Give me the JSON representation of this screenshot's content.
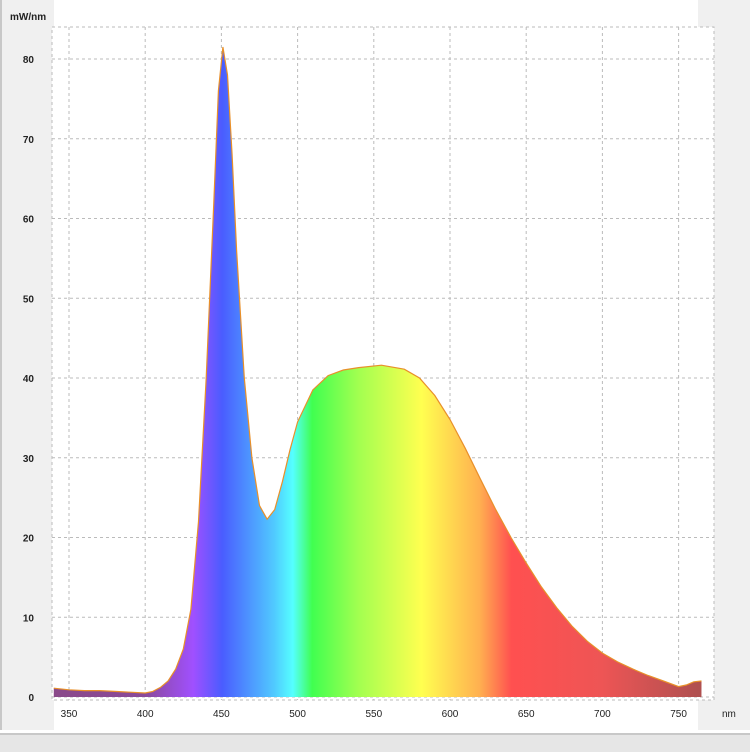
{
  "chart_data": {
    "type": "area",
    "title": "",
    "xlabel": "nm",
    "ylabel": "mW/nm",
    "xlim": [
      340,
      765
    ],
    "ylim": [
      0,
      82
    ],
    "xticks": [
      350,
      400,
      450,
      500,
      550,
      600,
      650,
      700,
      750
    ],
    "yticks": [
      0,
      10,
      20,
      30,
      40,
      50,
      60,
      70,
      80
    ],
    "grid": true,
    "fill": "visible-spectrum gradient",
    "outline_color": "#e8902a",
    "x": [
      340,
      350,
      360,
      370,
      380,
      390,
      400,
      405,
      410,
      415,
      420,
      425,
      430,
      435,
      440,
      445,
      448,
      451,
      454,
      457,
      460,
      465,
      470,
      475,
      480,
      485,
      490,
      495,
      500,
      510,
      520,
      530,
      540,
      555,
      570,
      580,
      590,
      600,
      610,
      620,
      630,
      640,
      650,
      660,
      670,
      680,
      690,
      700,
      710,
      720,
      730,
      740,
      750,
      755,
      760,
      765
    ],
    "y": [
      1.1,
      0.9,
      0.8,
      0.8,
      0.7,
      0.6,
      0.5,
      0.7,
      1.2,
      2.0,
      3.5,
      6,
      11,
      22,
      40,
      62,
      76,
      81.5,
      78,
      68,
      56,
      40,
      30,
      24,
      22.3,
      23.5,
      27,
      31,
      34.5,
      38.5,
      40.3,
      41.0,
      41.3,
      41.6,
      41.1,
      40.0,
      37.8,
      34.8,
      31.2,
      27.3,
      23.5,
      20.0,
      16.8,
      13.8,
      11.2,
      8.9,
      7.0,
      5.5,
      4.4,
      3.5,
      2.7,
      2.0,
      1.3,
      1.5,
      1.9,
      2.0
    ]
  }
}
